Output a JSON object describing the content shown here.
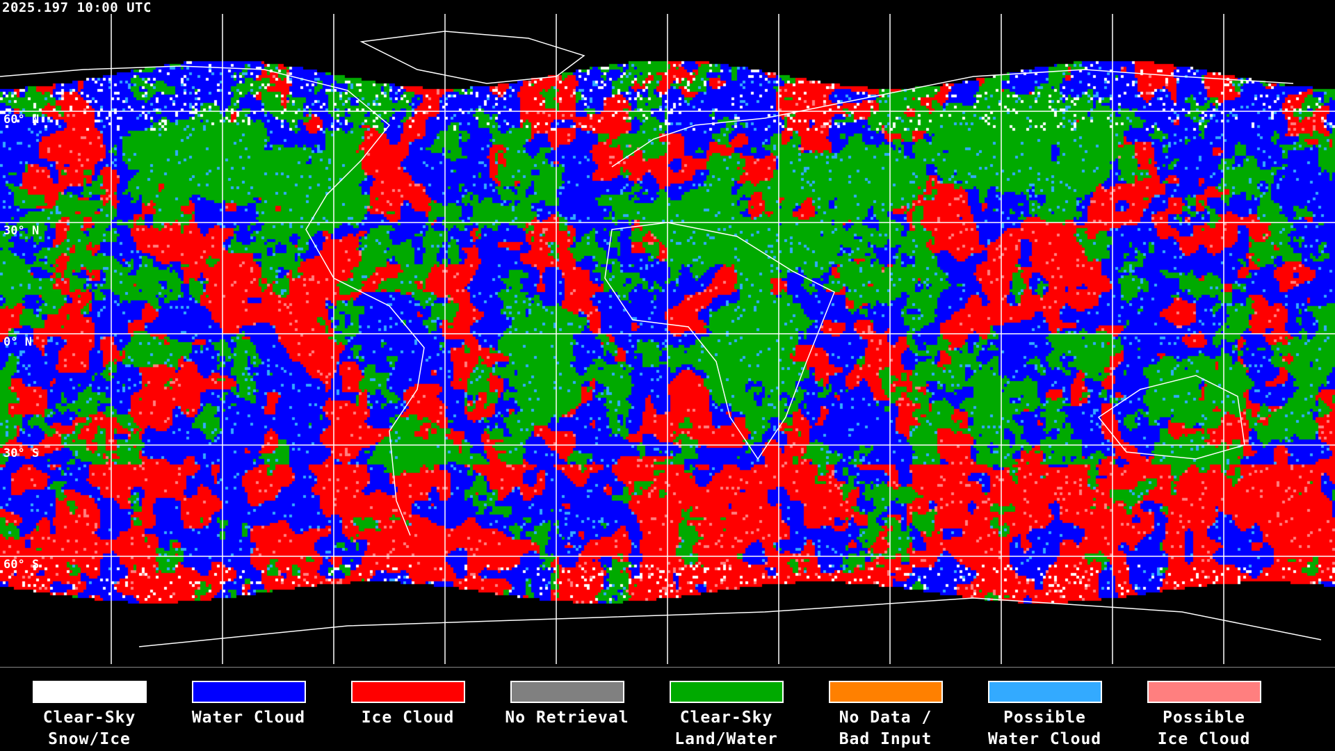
{
  "timestamp": "2025.197 10:00 UTC",
  "lat_labels": [
    "60° N",
    "30° N",
    "0° N",
    "30° S",
    "60° S"
  ],
  "legend": [
    {
      "line1": "Clear-Sky",
      "line2": "Snow/Ice",
      "color": "#ffffff"
    },
    {
      "line1": "Water Cloud",
      "line2": "",
      "color": "#0000ff"
    },
    {
      "line1": "Ice Cloud",
      "line2": "",
      "color": "#ff0000"
    },
    {
      "line1": "No Retrieval",
      "line2": "",
      "color": "#808080"
    },
    {
      "line1": "Clear-Sky",
      "line2": "Land/Water",
      "color": "#00aa00"
    },
    {
      "line1": "No Data /",
      "line2": "Bad Input",
      "color": "#ff8000"
    },
    {
      "line1": "Possible",
      "line2": "Water Cloud",
      "color": "#33aaff"
    },
    {
      "line1": "Possible",
      "line2": "Ice Cloud",
      "color": "#ff7f7f"
    }
  ]
}
